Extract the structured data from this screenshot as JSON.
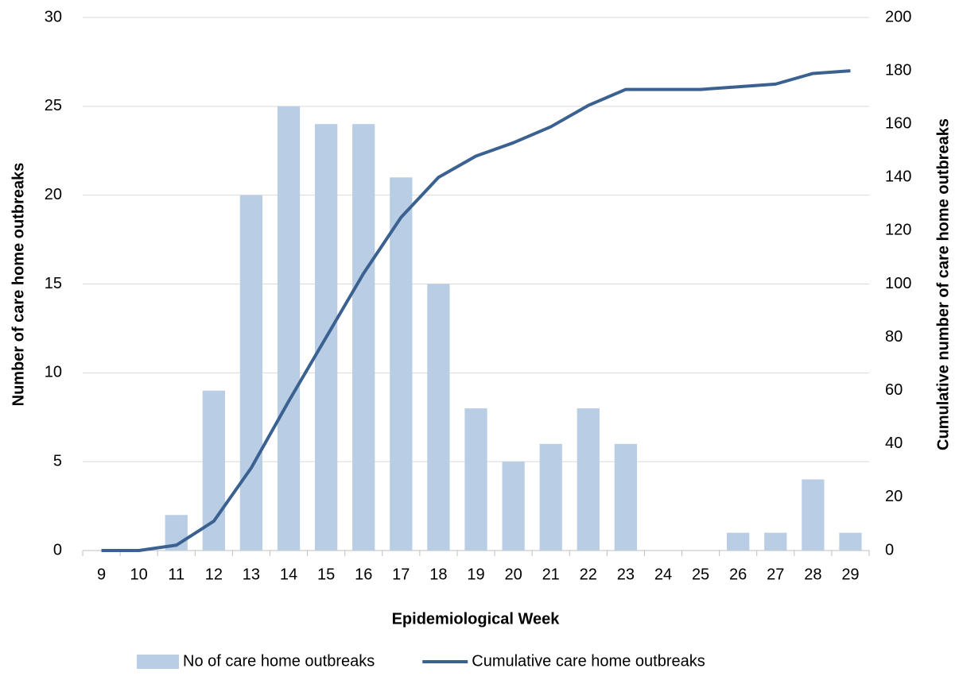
{
  "chart_data": {
    "type": "bar",
    "x_label": "Epidemiological Week",
    "y_label": "Number of care home outbreaks",
    "y2_label": "Cumulative number of care home outbreaks",
    "categories": [
      "9",
      "10",
      "11",
      "12",
      "13",
      "14",
      "15",
      "16",
      "17",
      "18",
      "19",
      "20",
      "21",
      "22",
      "23",
      "24",
      "25",
      "26",
      "27",
      "28",
      "29"
    ],
    "series": [
      {
        "name": "No of care home outbreaks",
        "type": "bar",
        "color": "#b9cde5",
        "values": [
          0,
          0,
          2,
          9,
          20,
          25,
          24,
          24,
          21,
          15,
          8,
          5,
          6,
          8,
          6,
          0,
          0,
          1,
          1,
          4,
          1
        ]
      },
      {
        "name": "Cumulative care home outbreaks",
        "type": "line",
        "axis": "y2",
        "color": "#3a6190",
        "values": [
          0,
          0,
          2,
          11,
          31,
          56,
          80,
          104,
          125,
          140,
          148,
          153,
          159,
          167,
          173,
          173,
          173,
          174,
          175,
          179,
          180
        ]
      }
    ],
    "ylim": [
      0,
      30
    ],
    "yticks": [
      0,
      5,
      10,
      15,
      20,
      25,
      30
    ],
    "y2lim": [
      0,
      200
    ],
    "y2ticks": [
      0,
      20,
      40,
      60,
      80,
      100,
      120,
      140,
      160,
      180,
      200
    ],
    "grid": true,
    "legend": "bottom"
  }
}
